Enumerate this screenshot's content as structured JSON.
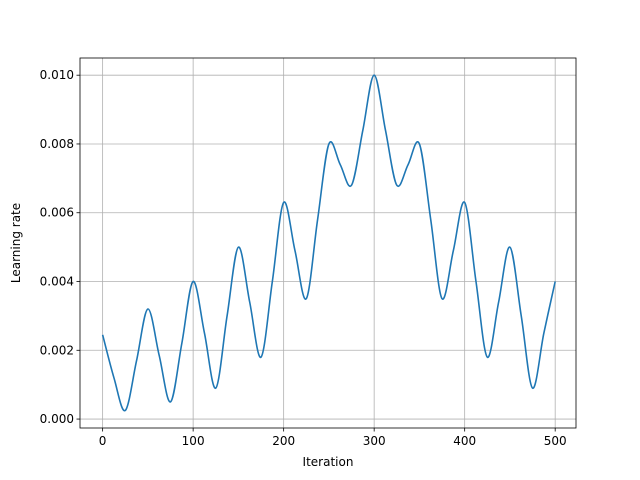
{
  "chart_data": {
    "type": "line",
    "xlabel": "Iteration",
    "ylabel": "Learning rate",
    "x": [
      0,
      12.5,
      25,
      37.5,
      50,
      62.5,
      75,
      87.5,
      100,
      112.5,
      125,
      137.5,
      150,
      162.5,
      175,
      187.5,
      200,
      212.5,
      225,
      237.5,
      250,
      262.5,
      275,
      287.5,
      300,
      312.5,
      325,
      337.5,
      350,
      362.5,
      375,
      387.5,
      400,
      412.5,
      425,
      437.5,
      450,
      462.5,
      475,
      487.5,
      500
    ],
    "series": [
      {
        "color": "#1f77b4",
        "values": [
          0.00245,
          0.0012,
          0.00025,
          0.0017,
          0.0032,
          0.00185,
          0.0005,
          0.0022,
          0.004,
          0.0025,
          0.0009,
          0.003,
          0.005,
          0.0034,
          0.0018,
          0.004,
          0.0063,
          0.0049,
          0.0035,
          0.0058,
          0.008,
          0.0074,
          0.0068,
          0.0084,
          0.01,
          0.0084,
          0.0068,
          0.0074,
          0.008,
          0.0058,
          0.0035,
          0.0049,
          0.0063,
          0.004,
          0.0018,
          0.0034,
          0.005,
          0.003,
          0.0009,
          0.0025,
          0.004
        ]
      }
    ],
    "xlim": [
      -25,
      523
    ],
    "ylim": [
      -0.00026,
      0.0105
    ],
    "xticks": [
      0,
      100,
      200,
      300,
      400,
      500
    ],
    "yticks": [
      {
        "value": 0,
        "label": "0.000"
      },
      {
        "value": 0.002,
        "label": "0.002"
      },
      {
        "value": 0.004,
        "label": "0.004"
      },
      {
        "value": 0.006,
        "label": "0.006"
      },
      {
        "value": 0.008,
        "label": "0.008"
      },
      {
        "value": 0.01,
        "label": "0.010"
      }
    ],
    "grid": true
  }
}
